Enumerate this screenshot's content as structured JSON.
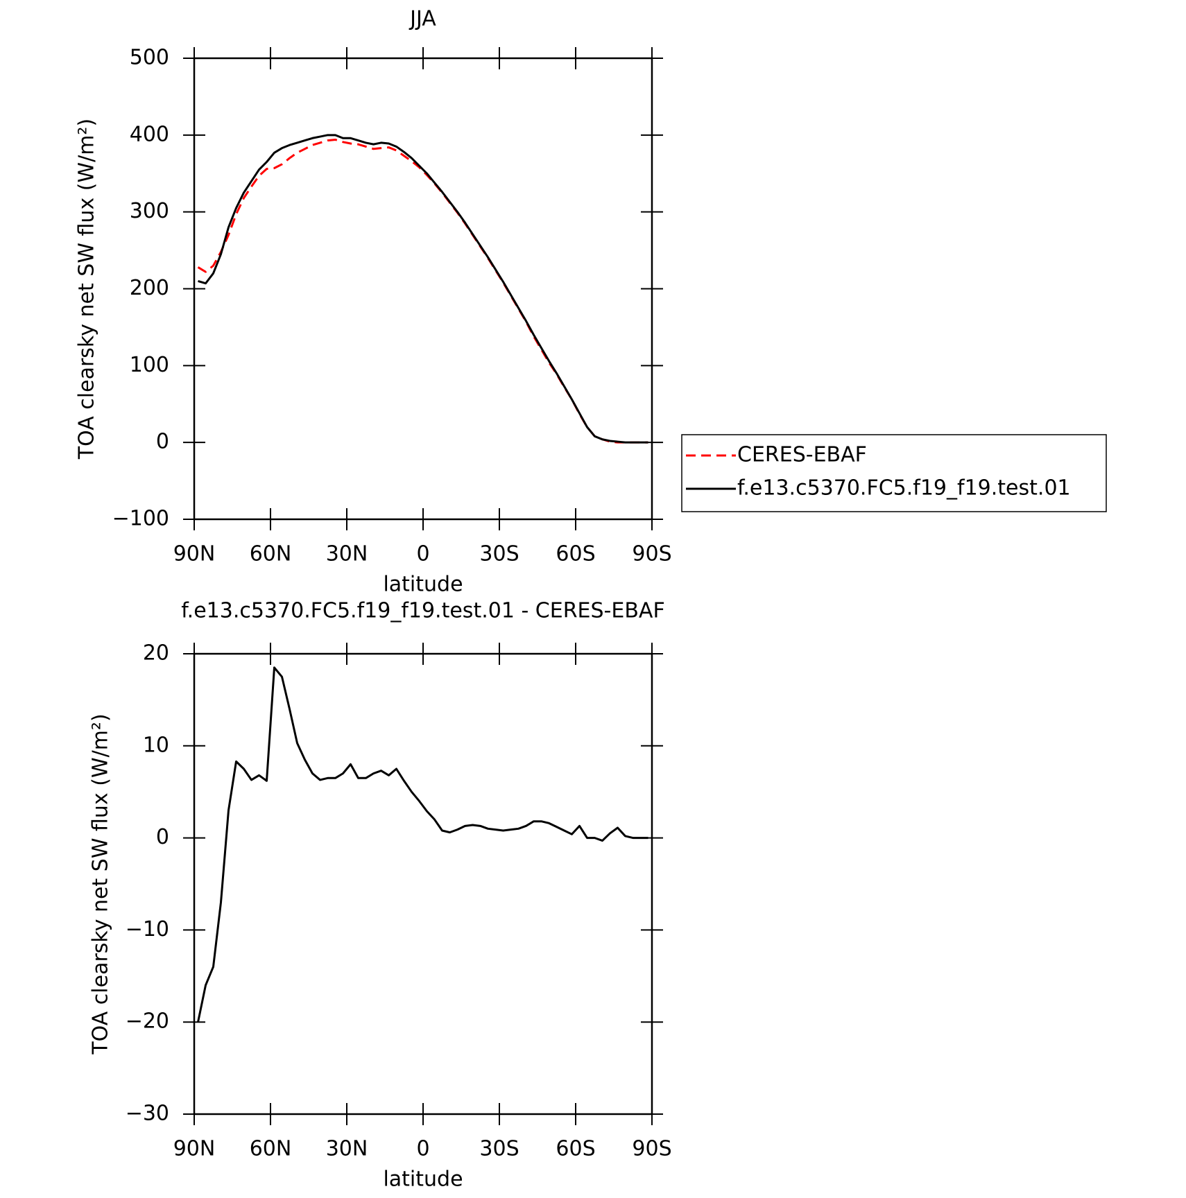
{
  "chart_data": [
    {
      "type": "line",
      "title": "JJA",
      "x_label": "latitude",
      "y_label": "TOA clearsky net SW flux (W/m²)",
      "x": [
        88.5,
        85.5,
        82.5,
        79.5,
        76.5,
        73.5,
        70.5,
        67.5,
        64.5,
        61.5,
        58.5,
        55.5,
        52.5,
        49.5,
        46.5,
        43.5,
        40.5,
        37.5,
        34.5,
        31.5,
        28.5,
        25.5,
        22.5,
        19.5,
        16.5,
        13.5,
        10.5,
        7.5,
        4.5,
        1.5,
        -1.5,
        -4.5,
        -7.5,
        -10.5,
        -13.5,
        -16.5,
        -19.5,
        -22.5,
        -25.5,
        -28.5,
        -31.5,
        -34.5,
        -37.5,
        -40.5,
        -43.5,
        -46.5,
        -49.5,
        -52.5,
        -55.5,
        -58.5,
        -61.5,
        -64.5,
        -67.5,
        -70.5,
        -73.5,
        -76.5,
        -79.5,
        -82.5,
        -85.5,
        -88.5
      ],
      "series": [
        {
          "name": "CERES-EBAF",
          "color": "#ff0000",
          "style": "dashed",
          "values": [
            228,
            222,
            230,
            248,
            270,
            297,
            318,
            333,
            347,
            356,
            357,
            362,
            370,
            377,
            382,
            387,
            390,
            393,
            394,
            391,
            389,
            388,
            385,
            382,
            383,
            384,
            380,
            373,
            366,
            358,
            348,
            337,
            325,
            312,
            299,
            285,
            270,
            255,
            240,
            224,
            208,
            191,
            174,
            157,
            138,
            121,
            104,
            89,
            72,
            56,
            37,
            20,
            8,
            4,
            1,
            0,
            0,
            0,
            0,
            0
          ]
        },
        {
          "name": "f.e13.c5370.FC5.f19_f19.test.01",
          "color": "#000000",
          "style": "solid",
          "values": [
            210,
            207,
            220,
            245,
            280,
            305,
            325,
            340,
            355,
            365,
            377,
            383,
            387,
            390,
            393,
            396,
            398,
            400,
            400,
            396,
            396,
            393,
            390,
            388,
            390,
            389,
            385,
            378,
            370,
            360,
            350,
            338,
            326,
            313,
            300,
            286,
            271,
            256,
            241,
            225,
            209,
            192,
            175,
            158,
            140,
            123,
            106,
            90,
            73,
            56,
            38,
            20,
            8,
            4,
            2,
            1,
            0,
            0,
            0,
            0
          ]
        }
      ],
      "xlim": [
        90,
        -90
      ],
      "xticks": [
        {
          "value": 90,
          "label": "90N"
        },
        {
          "value": 60,
          "label": "60N"
        },
        {
          "value": 30,
          "label": "30N"
        },
        0,
        {
          "value": -30,
          "label": "30S"
        },
        {
          "value": -60,
          "label": "60S"
        },
        {
          "value": -90,
          "label": "90S"
        }
      ],
      "ylim": [
        -100,
        500
      ],
      "yticks": [
        {
          "value": -100,
          "label": "−100"
        },
        0,
        100,
        200,
        300,
        400,
        500
      ],
      "legend": "outside-right"
    },
    {
      "type": "line",
      "title": "f.e13.c5370.FC5.f19_f19.test.01 - CERES-EBAF",
      "x_label": "latitude",
      "y_label": "TOA clearsky net SW flux (W/m²)",
      "x": [
        88.5,
        85.5,
        82.5,
        79.5,
        76.5,
        73.5,
        70.5,
        67.5,
        64.5,
        61.5,
        58.5,
        55.5,
        52.5,
        49.5,
        46.5,
        43.5,
        40.5,
        37.5,
        34.5,
        31.5,
        28.5,
        25.5,
        22.5,
        19.5,
        16.5,
        13.5,
        10.5,
        7.5,
        4.5,
        1.5,
        -1.5,
        -4.5,
        -7.5,
        -10.5,
        -13.5,
        -16.5,
        -19.5,
        -22.5,
        -25.5,
        -28.5,
        -31.5,
        -34.5,
        -37.5,
        -40.5,
        -43.5,
        -46.5,
        -49.5,
        -52.5,
        -55.5,
        -58.5,
        -61.5,
        -64.5,
        -67.5,
        -70.5,
        -73.5,
        -76.5,
        -79.5,
        -82.5,
        -85.5,
        -88.5
      ],
      "color": "#000000",
      "values": [
        -20,
        -16,
        -14,
        -7,
        3,
        8.3,
        7.5,
        6.3,
        6.8,
        6.2,
        18.5,
        17.5,
        14,
        10.3,
        8.5,
        7,
        6.3,
        6.5,
        6.5,
        7,
        8,
        6.5,
        6.5,
        7,
        7.3,
        6.8,
        7.5,
        6.2,
        5,
        4,
        2.9,
        2,
        0.8,
        0.6,
        0.9,
        1.3,
        1.4,
        1.3,
        1,
        0.9,
        0.8,
        0.9,
        1,
        1.3,
        1.8,
        1.8,
        1.6,
        1.2,
        0.8,
        0.4,
        1.3,
        0,
        0,
        -0.3,
        0.5,
        1.1,
        0.2,
        0,
        0,
        0
      ],
      "xlim": [
        90,
        -90
      ],
      "xticks": [
        {
          "value": 90,
          "label": "90N"
        },
        {
          "value": 60,
          "label": "60N"
        },
        {
          "value": 30,
          "label": "30N"
        },
        0,
        {
          "value": -30,
          "label": "30S"
        },
        {
          "value": -60,
          "label": "60S"
        },
        {
          "value": -90,
          "label": "90S"
        }
      ],
      "ylim": [
        -30,
        20
      ],
      "yticks": [
        {
          "value": -30,
          "label": "−30"
        },
        {
          "value": -20,
          "label": "−20"
        },
        {
          "value": -10,
          "label": "−10"
        },
        0,
        10,
        20
      ]
    }
  ]
}
